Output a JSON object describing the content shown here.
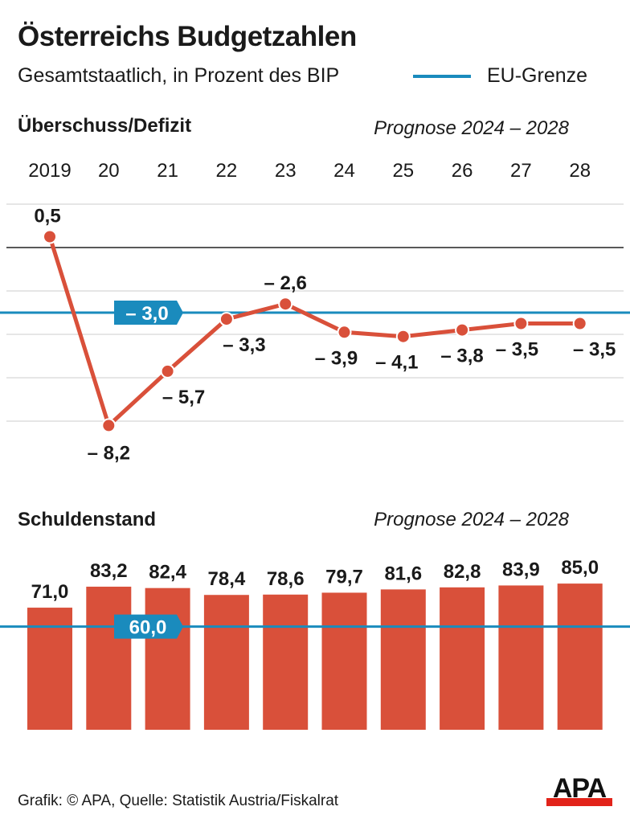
{
  "title": "Österreichs Budgetzahlen",
  "subtitle": "Gesamtstaatlich, in Prozent des BIP",
  "legend": {
    "label": "EU-Grenze",
    "color": "#1a8bbd"
  },
  "colors": {
    "series": "#d9503a",
    "eu_line": "#1a8bbd",
    "grid": "#dddddd",
    "zero": "#222222"
  },
  "source": "Grafik: © APA, Quelle: Statistik Austria/Fiskalrat",
  "logo": "APA",
  "chart_data": [
    {
      "type": "line",
      "title": "Überschuss/Defizit",
      "annotation": "Prognose 2024 – 2028",
      "categories": [
        "2019",
        "20",
        "21",
        "22",
        "23",
        "24",
        "25",
        "26",
        "27",
        "28"
      ],
      "values": [
        0.5,
        -8.2,
        -5.7,
        -3.3,
        -2.6,
        -3.9,
        -4.1,
        -3.8,
        -3.5,
        -3.5
      ],
      "labels": [
        "0,5",
        "– 8,2",
        "– 5,7",
        "– 3,3",
        "– 2,6",
        "– 3,9",
        "– 4,1",
        "– 3,8",
        "– 3,5",
        "– 3,5"
      ],
      "reference_line": {
        "value": -3.0,
        "label": "– 3,0"
      },
      "ylim": [
        -8.6,
        2
      ],
      "grid": true
    },
    {
      "type": "bar",
      "title": "Schuldenstand",
      "annotation": "Prognose 2024 – 2028",
      "categories": [
        "2019",
        "20",
        "21",
        "22",
        "23",
        "24",
        "25",
        "26",
        "27",
        "28"
      ],
      "values": [
        71.0,
        83.2,
        82.4,
        78.4,
        78.6,
        79.7,
        81.6,
        82.8,
        83.9,
        85.0
      ],
      "labels": [
        "71,0",
        "83,2",
        "82,4",
        "78,4",
        "78,6",
        "79,7",
        "81,6",
        "82,8",
        "83,9",
        "85,0"
      ],
      "reference_line": {
        "value": 60.0,
        "label": "60,0"
      },
      "ylim": [
        0,
        85
      ]
    }
  ]
}
